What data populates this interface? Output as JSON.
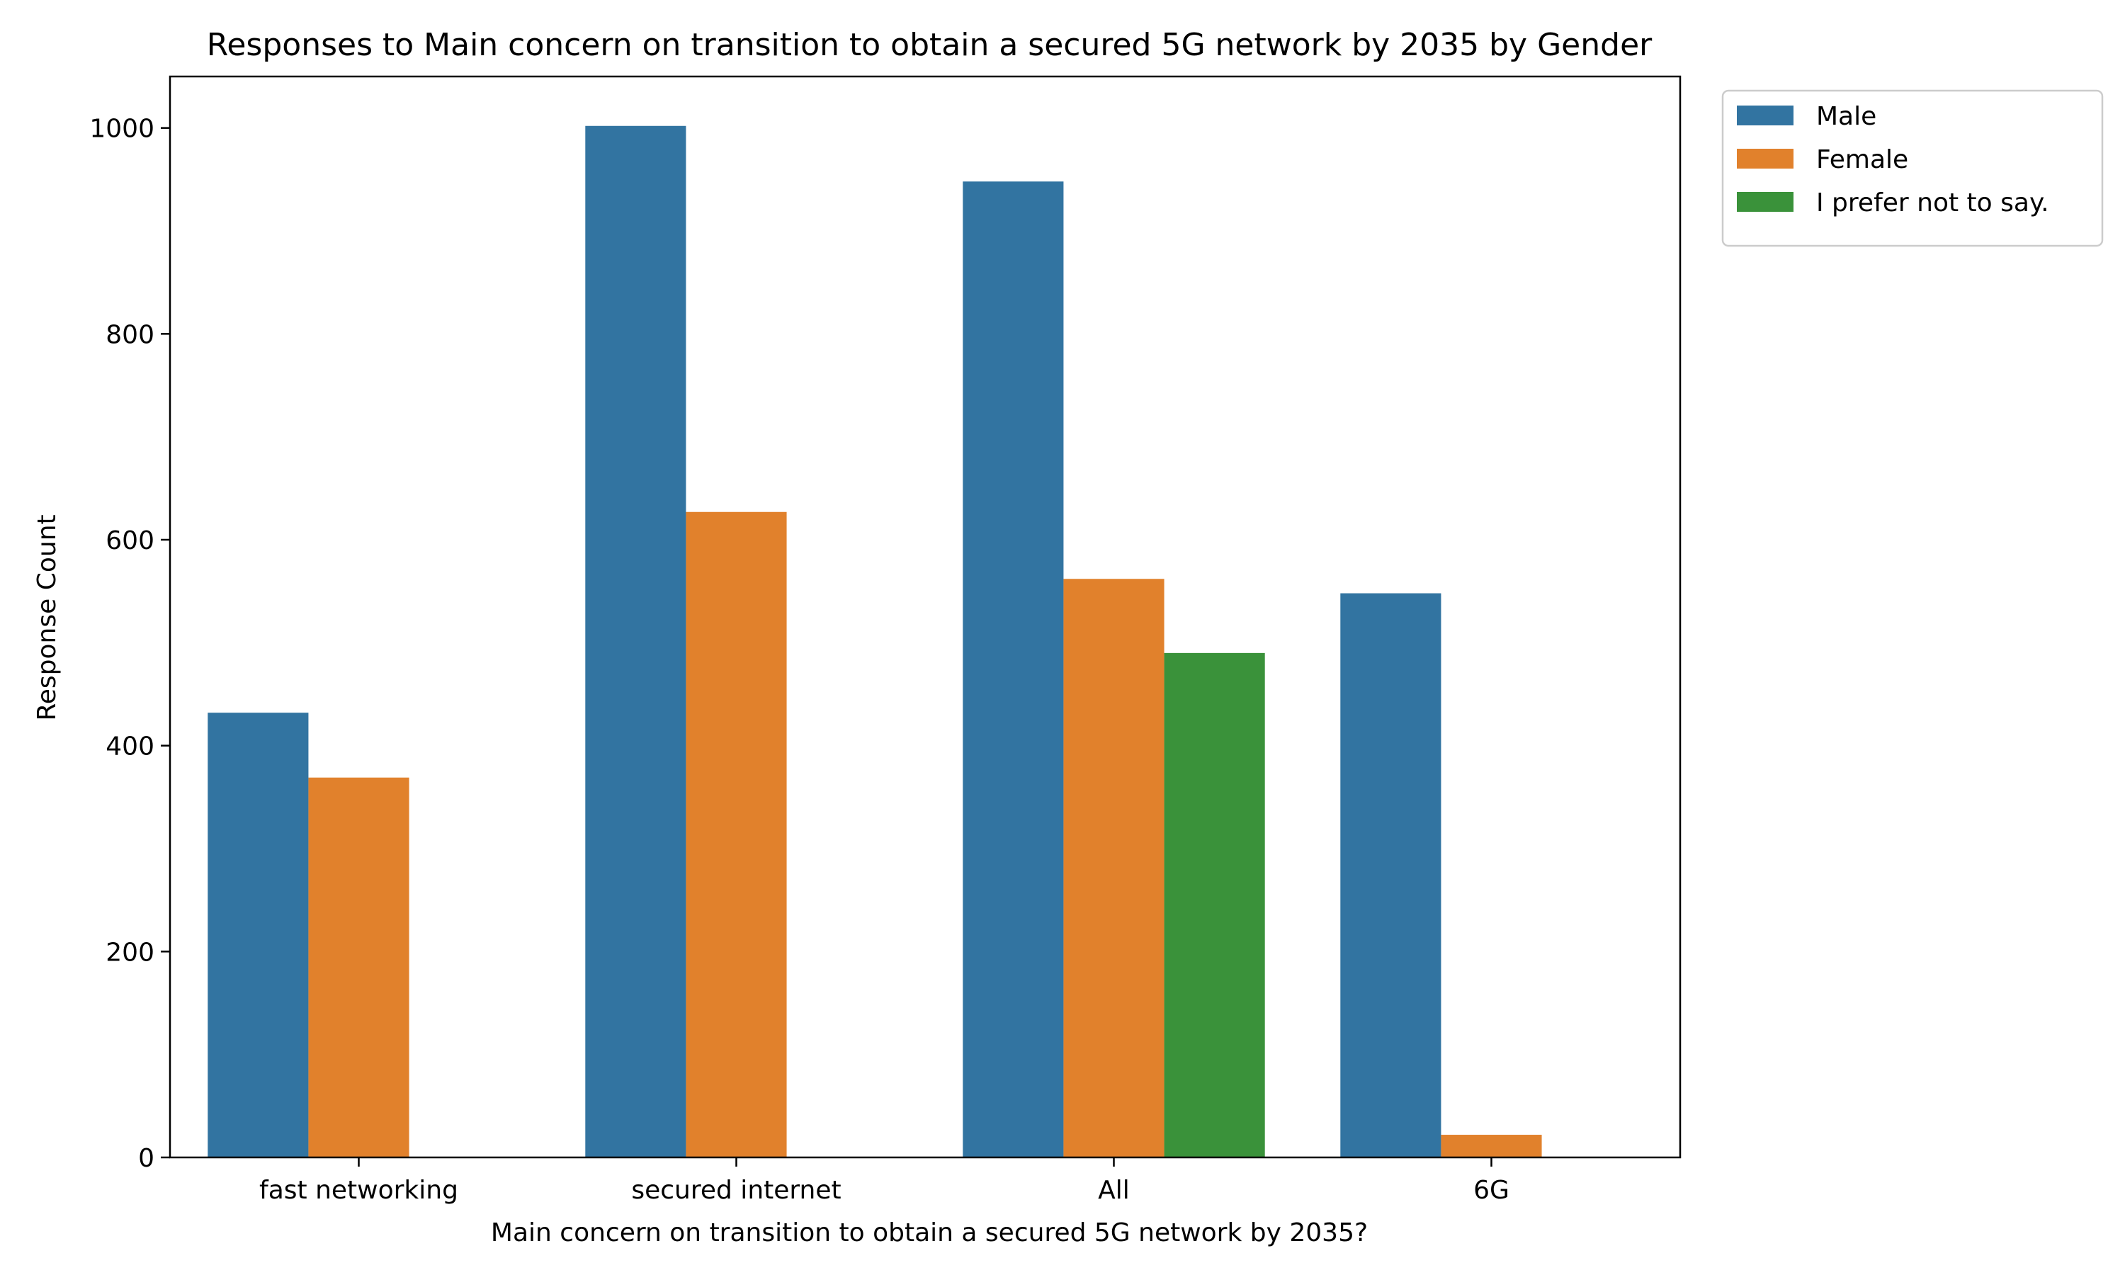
{
  "chart_data": {
    "type": "bar",
    "title": "Responses to Main concern on transition to obtain a secured 5G network by 2035 by Gender",
    "xlabel": "Main concern on transition to obtain a secured 5G network by 2035?",
    "ylabel": "Response Count",
    "categories": [
      "fast networking",
      "secured internet",
      "All",
      "6G"
    ],
    "series": [
      {
        "name": "Male",
        "color": "#3274a1",
        "values": [
          432,
          1002,
          948,
          548
        ]
      },
      {
        "name": "Female",
        "color": "#e1812c",
        "values": [
          369,
          627,
          562,
          22
        ]
      },
      {
        "name": "I prefer not to say.",
        "color": "#3a923a",
        "values": [
          0,
          0,
          490,
          0
        ]
      }
    ],
    "ylim": [
      0,
      1050
    ],
    "yticks": [
      0,
      200,
      400,
      600,
      800,
      1000
    ],
    "grid": false,
    "legend_position": "outside-top-right"
  }
}
